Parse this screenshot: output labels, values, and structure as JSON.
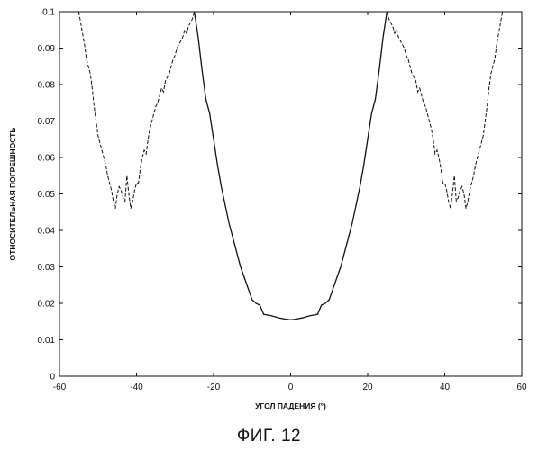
{
  "chart_data": {
    "type": "line",
    "xlabel": "УГОЛ ПАДЕНИЯ (°)",
    "ylabel": "ОТНОСИТЕЛЬНАЯ ПОГРЕШНОСТЬ",
    "xlim": [
      -60,
      60
    ],
    "ylim": [
      0,
      0.1
    ],
    "xticks": [
      "-60",
      "-40",
      "-20",
      "0",
      "20",
      "40",
      "60"
    ],
    "yticks": [
      "0",
      "0.01",
      "0.02",
      "0.03",
      "0.04",
      "0.05",
      "0.06",
      "0.07",
      "0.08",
      "0.09",
      "0.1"
    ],
    "grid": false,
    "series": [
      {
        "style": "solid",
        "color": "#111111",
        "x": [
          -25,
          -24,
          -23,
          -22,
          -21,
          -20,
          -19,
          -18,
          -17,
          -16,
          -15,
          -14,
          -13,
          -12,
          -11,
          -10,
          -9,
          -8,
          -7,
          -6,
          -5,
          -4,
          -3,
          -2,
          -1,
          0,
          1,
          2,
          3,
          4,
          5,
          6,
          7,
          8,
          9,
          10,
          11,
          12,
          13,
          14,
          15,
          16,
          17,
          18,
          19,
          20,
          21,
          22,
          23,
          24,
          25
        ],
        "y": [
          0.1,
          0.093,
          0.084,
          0.076,
          0.072,
          0.065,
          0.058,
          0.052,
          0.047,
          0.042,
          0.038,
          0.034,
          0.03,
          0.027,
          0.024,
          0.021,
          0.02,
          0.0195,
          0.017,
          0.0168,
          0.0166,
          0.0163,
          0.016,
          0.0158,
          0.0156,
          0.0155,
          0.0156,
          0.0158,
          0.016,
          0.0163,
          0.0166,
          0.0168,
          0.017,
          0.0195,
          0.02,
          0.021,
          0.024,
          0.027,
          0.03,
          0.034,
          0.038,
          0.042,
          0.047,
          0.052,
          0.058,
          0.065,
          0.072,
          0.076,
          0.084,
          0.093,
          0.1
        ]
      },
      {
        "style": "dashed",
        "color": "#111111",
        "x": [
          -55,
          -54.5,
          -54,
          -53.5,
          -53,
          -52.5,
          -52,
          -51.5,
          -51,
          -50.5,
          -50,
          -49.5,
          -49,
          -48.5,
          -48,
          -47.5,
          -47,
          -46.5,
          -46,
          -45.5,
          -45,
          -44.5,
          -44,
          -43.5,
          -43,
          -42.5,
          -42,
          -41.5,
          -41,
          -40.5,
          -40,
          -39.5,
          -39,
          -38.5,
          -38,
          -37.5,
          -37,
          -36.5,
          -36,
          -35.5,
          -35,
          -34.5,
          -34,
          -33.5,
          -33,
          -32.5,
          -32,
          -31.5,
          -31,
          -30.5,
          -30,
          -29.5,
          -29,
          -28.5,
          -28,
          -27.5,
          -27,
          -26.5,
          -26,
          -25.5,
          -25
        ],
        "y": [
          0.1,
          0.097,
          0.094,
          0.091,
          0.087,
          0.085,
          0.083,
          0.079,
          0.074,
          0.07,
          0.066,
          0.064,
          0.062,
          0.06,
          0.058,
          0.055,
          0.053,
          0.051,
          0.048,
          0.046,
          0.05,
          0.052,
          0.051,
          0.049,
          0.048,
          0.055,
          0.05,
          0.046,
          0.048,
          0.051,
          0.053,
          0.053,
          0.057,
          0.06,
          0.062,
          0.061,
          0.065,
          0.068,
          0.07,
          0.072,
          0.074,
          0.075,
          0.077,
          0.079,
          0.078,
          0.081,
          0.082,
          0.083,
          0.085,
          0.087,
          0.088,
          0.09,
          0.091,
          0.092,
          0.093,
          0.095,
          0.094,
          0.096,
          0.097,
          0.098,
          0.1
        ]
      },
      {
        "style": "dashed",
        "color": "#111111",
        "x": [
          25,
          25.5,
          26,
          26.5,
          27,
          27.5,
          28,
          28.5,
          29,
          29.5,
          30,
          30.5,
          31,
          31.5,
          32,
          32.5,
          33,
          33.5,
          34,
          34.5,
          35,
          35.5,
          36,
          36.5,
          37,
          37.5,
          38,
          38.5,
          39,
          39.5,
          40,
          40.5,
          41,
          41.5,
          42,
          42.5,
          43,
          43.5,
          44,
          44.5,
          45,
          45.5,
          46,
          46.5,
          47,
          47.5,
          48,
          48.5,
          49,
          49.5,
          50,
          50.5,
          51,
          51.5,
          52,
          52.5,
          53,
          53.5,
          54,
          54.5,
          55
        ],
        "y": [
          0.1,
          0.098,
          0.097,
          0.096,
          0.094,
          0.095,
          0.093,
          0.092,
          0.091,
          0.09,
          0.088,
          0.087,
          0.085,
          0.083,
          0.082,
          0.081,
          0.078,
          0.079,
          0.077,
          0.075,
          0.074,
          0.072,
          0.07,
          0.068,
          0.065,
          0.061,
          0.062,
          0.06,
          0.057,
          0.053,
          0.053,
          0.051,
          0.048,
          0.046,
          0.05,
          0.055,
          0.048,
          0.049,
          0.051,
          0.052,
          0.05,
          0.046,
          0.048,
          0.051,
          0.053,
          0.055,
          0.058,
          0.06,
          0.062,
          0.064,
          0.066,
          0.07,
          0.074,
          0.079,
          0.083,
          0.085,
          0.087,
          0.091,
          0.094,
          0.097,
          0.1
        ]
      }
    ]
  },
  "figure": {
    "caption": "ФИГ. 12"
  }
}
